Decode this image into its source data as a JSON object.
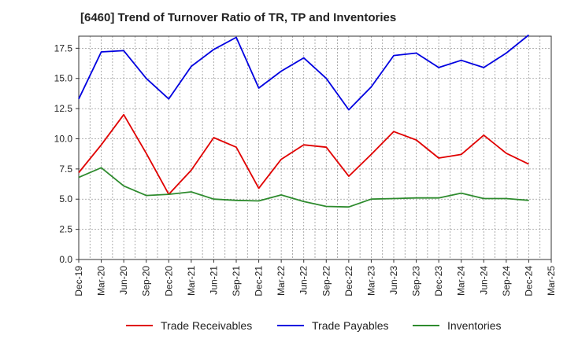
{
  "title": "[6460]  Trend of Turnover Ratio of TR, TP and Inventories",
  "chart_data": {
    "type": "line",
    "title": "[6460]  Trend of Turnover Ratio of TR, TP and Inventories",
    "xlabel": "",
    "ylabel": "",
    "x": [
      "Dec-19",
      "Mar-20",
      "Jun-20",
      "Sep-20",
      "Dec-20",
      "Mar-21",
      "Jun-21",
      "Sep-21",
      "Dec-21",
      "Mar-22",
      "Jun-22",
      "Sep-22",
      "Dec-22",
      "Mar-23",
      "Jun-23",
      "Sep-23",
      "Dec-23",
      "Mar-24",
      "Jun-24",
      "Sep-24",
      "Dec-24"
    ],
    "x_ticks": [
      "Dec-19",
      "Mar-20",
      "Jun-20",
      "Sep-20",
      "Dec-20",
      "Mar-21",
      "Jun-21",
      "Sep-21",
      "Dec-21",
      "Mar-22",
      "Jun-22",
      "Sep-22",
      "Dec-22",
      "Mar-23",
      "Jun-23",
      "Sep-23",
      "Dec-23",
      "Mar-24",
      "Jun-24",
      "Sep-24",
      "Dec-24",
      "Mar-25"
    ],
    "y_ticks": [
      "0.0",
      "2.5",
      "5.0",
      "7.5",
      "10.0",
      "12.5",
      "15.0",
      "17.5"
    ],
    "ylim": [
      0,
      18.5
    ],
    "grid": "dotted, both axes",
    "legend_position": "bottom",
    "series": [
      {
        "name": "Trade Receivables",
        "color": "#e00000",
        "values": [
          7.2,
          9.5,
          12.0,
          8.8,
          5.4,
          7.4,
          10.1,
          9.3,
          5.9,
          8.3,
          9.5,
          9.3,
          6.9,
          8.7,
          10.6,
          9.9,
          8.4,
          8.7,
          10.3,
          8.8,
          7.9
        ]
      },
      {
        "name": "Trade Payables",
        "color": "#0000e0",
        "values": [
          13.3,
          17.2,
          17.3,
          15.0,
          13.3,
          16.0,
          17.4,
          18.4,
          14.2,
          15.6,
          16.7,
          15.0,
          12.4,
          14.3,
          16.9,
          17.1,
          15.9,
          16.5,
          15.9,
          17.1,
          18.6
        ]
      },
      {
        "name": "Inventories",
        "color": "#2e8b2e",
        "values": [
          6.8,
          7.6,
          6.1,
          5.3,
          5.4,
          5.6,
          5.0,
          4.9,
          4.85,
          5.35,
          4.8,
          4.4,
          4.35,
          5.0,
          5.05,
          5.1,
          5.1,
          5.5,
          5.05,
          5.05,
          4.9
        ]
      }
    ]
  }
}
